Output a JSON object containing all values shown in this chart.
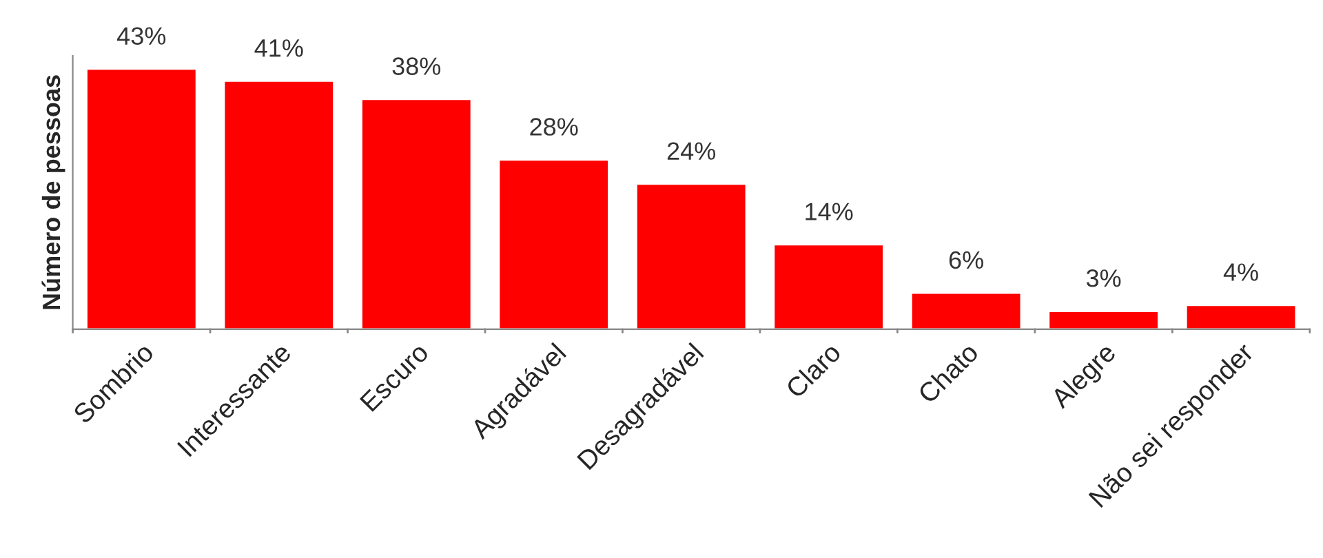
{
  "chart_data": {
    "type": "bar",
    "ylabel": "Número de pessoas",
    "categories": [
      "Sombrio",
      "Interessante",
      "Escuro",
      "Agradável",
      "Desagradável",
      "Claro",
      "Chato",
      "Alegre",
      "Não sei responder"
    ],
    "values": [
      43,
      41,
      38,
      28,
      24,
      14,
      6,
      3,
      4
    ],
    "value_labels": [
      "43%",
      "41%",
      "38%",
      "28%",
      "24%",
      "14%",
      "6%",
      "3%",
      "4%"
    ],
    "color": "#ff0000",
    "grid": false,
    "legend": false
  }
}
